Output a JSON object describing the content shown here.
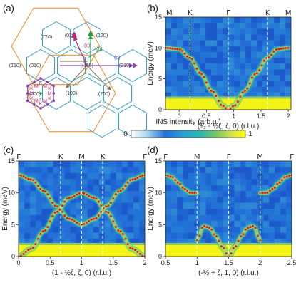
{
  "colorbar": {
    "title": "INS intensity (arb.u.)",
    "min_label": "0",
    "max_label": "1",
    "stops": [
      "#ffffff",
      "#a6d8f0",
      "#1e6fdd",
      "#2a9fd6",
      "#27b8b0",
      "#79c860",
      "#d8e34a",
      "#ffff00"
    ]
  },
  "colors": {
    "hex_cell": "#3a9fc8",
    "big_hex": "#e88a24",
    "red_dots": "#e01c1c",
    "model_dots": "#2a8a58",
    "ring": "#8a3aa8"
  },
  "panel_a": {
    "label": "(a)",
    "cells": [
      "(1̄20)",
      "(020)",
      "(120)",
      "(1̄10)",
      "(010)",
      "(110)",
      "(210)",
      "(000)",
      "(100)",
      "(200)"
    ],
    "path_labels": [
      "(c)",
      "(b)",
      "(d)"
    ],
    "path_colors": [
      "#c02a7a",
      "#2a9a4a",
      "#8a4ab0",
      "#8a6a4a"
    ],
    "bz_labels": [
      "K",
      "M",
      "K",
      "M",
      "K",
      "M",
      "K",
      "M",
      "K",
      "M",
      "K",
      "M",
      "Γ"
    ]
  },
  "chart_data": [
    {
      "panel": "(b)",
      "type": "heatmap",
      "xlabel": "(³⁄₂ - ½ζ, ζ, 0) (r.l.u.)",
      "ylabel": "Energy (meV)",
      "xlim": [
        -0.25,
        2.05
      ],
      "ylim": [
        0,
        15
      ],
      "x_ticks": [
        "0",
        "0.5",
        "1",
        "1.5",
        "2"
      ],
      "y_ticks": [
        "0",
        "5",
        "10",
        "15"
      ],
      "top_labels": [
        {
          "x": -0.18,
          "text": "M"
        },
        {
          "x": 0.2,
          "text": "K"
        },
        {
          "x": 0.9,
          "text": "Γ"
        },
        {
          "x": 1.62,
          "text": "K"
        },
        {
          "x": 2.0,
          "text": "M"
        }
      ],
      "dashed_x": [
        0.2,
        0.9,
        1.62
      ],
      "bands": [
        {
          "x": [
            -0.25,
            0.0,
            0.2,
            0.4,
            0.6,
            0.8,
            0.9,
            1.0,
            1.2,
            1.4,
            1.62,
            1.8,
            2.0
          ],
          "y": [
            10.0,
            9.8,
            8.4,
            5.8,
            3.0,
            0.6,
            0.0,
            0.6,
            3.0,
            5.8,
            8.4,
            9.8,
            10.0
          ]
        }
      ]
    },
    {
      "panel": "(c)",
      "type": "heatmap",
      "xlabel": "(1 - ½ζ, ζ, 0) (r.l.u.)",
      "ylabel": "Energy (meV)",
      "xlim": [
        0,
        2
      ],
      "ylim": [
        0,
        15
      ],
      "x_ticks": [
        "0",
        "0.5",
        "1",
        "1.5",
        "2"
      ],
      "y_ticks": [
        "0",
        "5",
        "10",
        "15"
      ],
      "top_labels": [
        {
          "x": 0.0,
          "text": "Γ"
        },
        {
          "x": 0.667,
          "text": "K"
        },
        {
          "x": 1.0,
          "text": "M"
        },
        {
          "x": 1.333,
          "text": "K"
        },
        {
          "x": 2.0,
          "text": "Γ"
        }
      ],
      "dashed_x": [
        0.667,
        1.0,
        1.333
      ],
      "bands": [
        {
          "x": [
            0.0,
            0.2,
            0.4,
            0.6,
            0.8,
            1.0
          ],
          "y": [
            12.8,
            12.1,
            10.3,
            7.9,
            5.9,
            5.0
          ]
        },
        {
          "x": [
            0.0,
            0.2,
            0.4,
            0.6,
            0.8,
            1.0,
            1.2,
            1.4,
            1.6,
            1.8,
            2.0
          ],
          "y": [
            0.0,
            1.2,
            4.0,
            7.0,
            9.2,
            10.0,
            9.2,
            7.0,
            4.0,
            1.2,
            0.0
          ]
        },
        {
          "x": [
            1.0,
            1.2,
            1.4,
            1.6,
            1.8,
            2.0
          ],
          "y": [
            5.0,
            5.9,
            7.9,
            10.3,
            12.1,
            12.8
          ]
        }
      ]
    },
    {
      "panel": "(d)",
      "type": "heatmap",
      "xlabel": "(-½ + ζ, 1, 0) (r.l.u.)",
      "ylabel": "Energy (meV)",
      "xlim": [
        0.5,
        2.5
      ],
      "ylim": [
        0,
        15
      ],
      "x_ticks": [
        "0.5",
        "1",
        "1.5",
        "2",
        "2.5"
      ],
      "y_ticks": [
        "0",
        "5",
        "10",
        "15"
      ],
      "top_labels": [
        {
          "x": 0.5,
          "text": "Γ"
        },
        {
          "x": 1.0,
          "text": "M"
        },
        {
          "x": 1.5,
          "text": "Γ"
        },
        {
          "x": 2.0,
          "text": "M"
        },
        {
          "x": 2.5,
          "text": "Γ"
        }
      ],
      "dashed_x": [
        1.0,
        1.5,
        2.0
      ],
      "bands": [
        {
          "x": [
            0.5,
            0.6,
            0.7,
            0.8,
            0.9,
            1.0
          ],
          "y": [
            12.8,
            12.5,
            11.6,
            10.6,
            10.0,
            10.0
          ]
        },
        {
          "x": [
            1.0,
            1.1,
            1.2,
            1.3,
            1.4,
            1.5,
            1.6,
            1.7,
            1.8,
            1.9,
            2.0
          ],
          "y": [
            2.5,
            4.8,
            4.5,
            3.2,
            1.5,
            0.0,
            1.5,
            3.2,
            4.5,
            4.8,
            2.5
          ]
        },
        {
          "x": [
            2.0,
            2.1,
            2.2,
            2.3,
            2.4,
            2.5
          ],
          "y": [
            10.0,
            10.0,
            10.6,
            11.6,
            12.5,
            12.8
          ]
        }
      ]
    }
  ]
}
